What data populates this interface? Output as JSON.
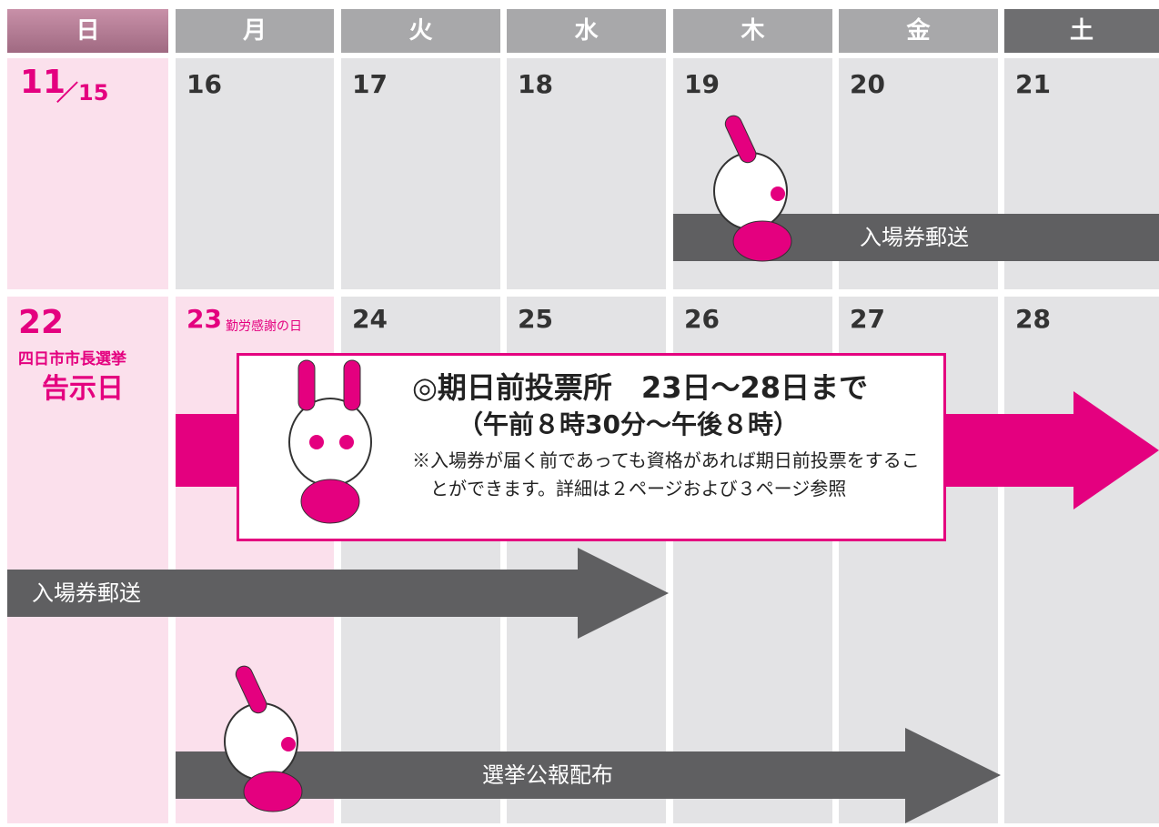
{
  "header": {
    "days": [
      "日",
      "月",
      "火",
      "水",
      "木",
      "金",
      "土"
    ]
  },
  "weeks": [
    {
      "month": "11",
      "dates": [
        "／15",
        "16",
        "17",
        "18",
        "19",
        "20",
        "21"
      ]
    },
    {
      "dates": [
        "22",
        "23",
        "24",
        "25",
        "26",
        "27",
        "28"
      ],
      "sunday_notes": [
        "四日市市長選挙",
        "告示日"
      ],
      "holiday": "勤労感謝の日"
    }
  ],
  "events": {
    "mail_week1": "入場券郵送",
    "mail_week2": "入場券郵送",
    "early_voting": {
      "title": "◎期日前投票所　23日～28日まで",
      "hours": "（午前８時30分～午後８時）",
      "note": "※入場券が届く前であっても資格があれば期日前投票をすることができます。詳細は２ページおよび３ページ参照"
    },
    "bulletin": "選挙公報配布"
  }
}
